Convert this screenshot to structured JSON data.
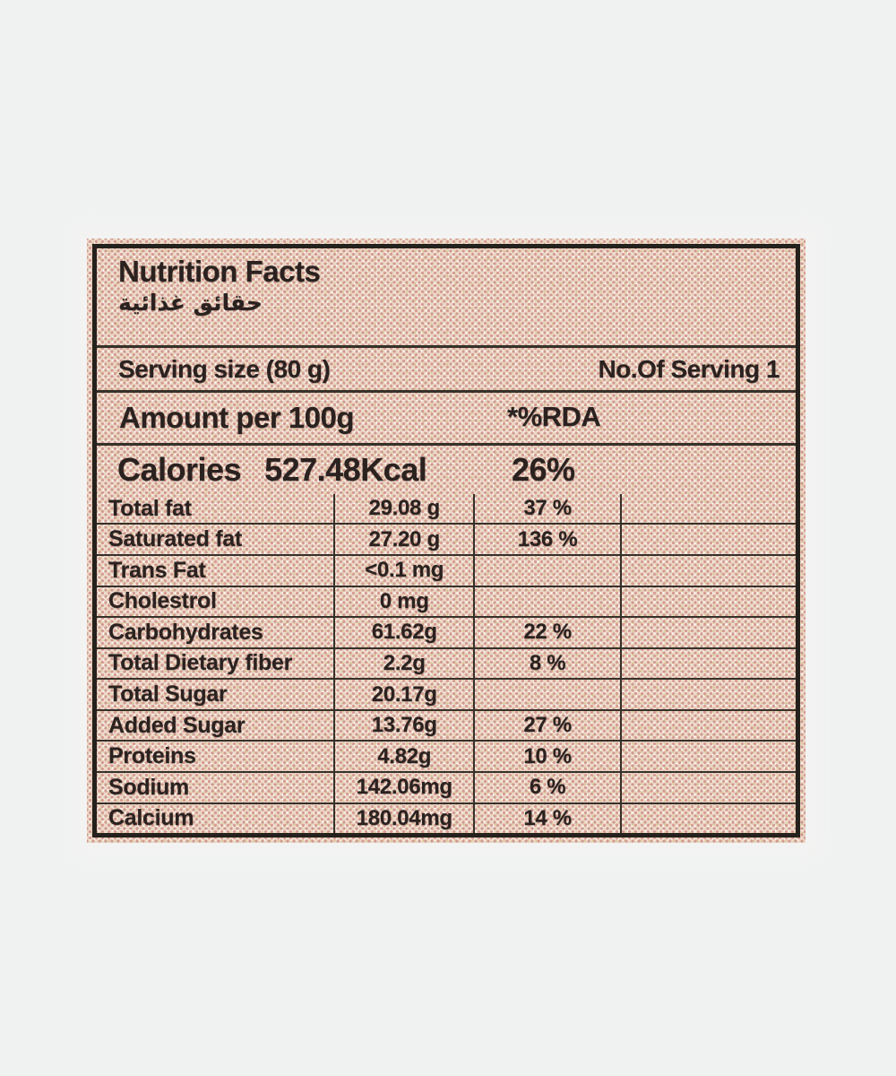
{
  "page": {
    "background": "#f0f1f1"
  },
  "label": {
    "title": "Nutrition Facts",
    "title_arabic": "حقائق غذائية",
    "serving_size": "Serving size (80 g)",
    "servings_count": "No.Of Serving 1",
    "amount_header": "Amount per 100g",
    "rda_header": "*%RDA",
    "calories_label": "Calories",
    "calories_value": "527.48Kcal",
    "calories_rda": "26%",
    "colors": {
      "label_base": "#ecd8c6",
      "halftone_dot": "#d59b93",
      "border": "#25211c",
      "text": "#2b2220"
    },
    "rows": [
      {
        "name": "Total fat",
        "amount": "29.08 g",
        "rda": "37 %"
      },
      {
        "name": "Saturated fat",
        "amount": "27.20 g",
        "rda": "136 %"
      },
      {
        "name": "Trans Fat",
        "amount": "<0.1 mg",
        "rda": ""
      },
      {
        "name": "Cholestrol",
        "amount": "0 mg",
        "rda": ""
      },
      {
        "name": "Carbohydrates",
        "amount": "61.62g",
        "rda": "22 %"
      },
      {
        "name": "Total Dietary fiber",
        "amount": "2.2g",
        "rda": "8 %"
      },
      {
        "name": "Total Sugar",
        "amount": "20.17g",
        "rda": ""
      },
      {
        "name": "Added Sugar",
        "amount": "13.76g",
        "rda": "27 %"
      },
      {
        "name": "Proteins",
        "amount": "4.82g",
        "rda": "10 %"
      },
      {
        "name": "Sodium",
        "amount": "142.06mg",
        "rda": "6 %"
      },
      {
        "name": "Calcium",
        "amount": "180.04mg",
        "rda": "14 %"
      }
    ]
  }
}
